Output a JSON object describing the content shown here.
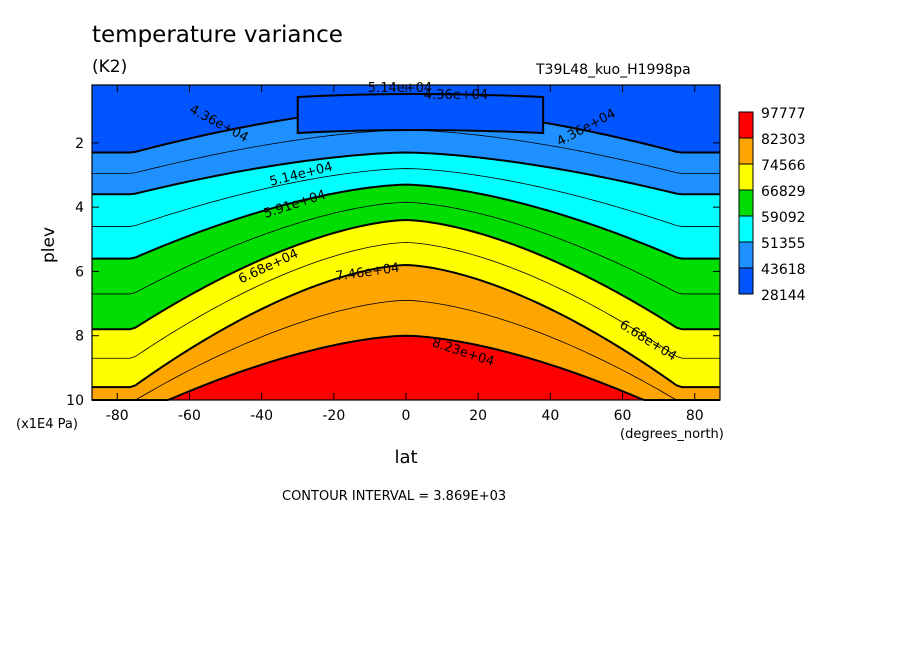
{
  "chart_data": {
    "type": "contour",
    "title": "temperature variance",
    "units": "(K2)",
    "run_id": "T39L48_kuo_H1998pa",
    "xlabel": "lat",
    "xunits": "(degrees_north)",
    "ylabel": "plev",
    "yunits": "(x1E4 Pa)",
    "xlim": [
      -87,
      87
    ],
    "ylim": [
      10,
      0.2
    ],
    "xticks": [
      -80,
      -60,
      -40,
      -20,
      0,
      20,
      40,
      60,
      80
    ],
    "yticks": [
      2,
      4,
      6,
      8,
      10
    ],
    "contour_interval": "CONTOUR INTERVAL = 3.869E+03",
    "levels": [
      28144,
      43618,
      51355,
      59092,
      66829,
      74566,
      82303,
      97777
    ],
    "colorbar": [
      {
        "label": "97777",
        "color": "#ff0000"
      },
      {
        "label": "82303",
        "color": "#ffa500"
      },
      {
        "label": "74566",
        "color": "#ffff00"
      },
      {
        "label": "66829",
        "color": "#00dd00"
      },
      {
        "label": "59092",
        "color": "#00ffff"
      },
      {
        "label": "51355",
        "color": "#1e90ff"
      },
      {
        "label": "43618",
        "color": "#0055ff"
      },
      {
        "label": "28144",
        "color": ""
      }
    ],
    "contour_labels": [
      "5.14e+04",
      "4.36e+04",
      "4.36e+04",
      "4.36e+04",
      "5.14e+04",
      "5.91e+04",
      "6.68e+04",
      "7.46e+04",
      "6.68e+04",
      "8.23e+04"
    ],
    "band_boundaries_plev": [
      {
        "level": 43618,
        "plev_equator": 0.9,
        "plev_pole": 2.3
      },
      {
        "level": 51355,
        "plev_equator": 2.3,
        "plev_pole": 3.6
      },
      {
        "level": 59092,
        "plev_equator": 3.3,
        "plev_pole": 5.6
      },
      {
        "level": 66829,
        "plev_equator": 4.4,
        "plev_pole": 7.8
      },
      {
        "level": 74566,
        "plev_equator": 5.8,
        "plev_pole": 9.6
      },
      {
        "level": 82303,
        "plev_equator": 8.0,
        "plev_pole": 10.5
      }
    ]
  }
}
